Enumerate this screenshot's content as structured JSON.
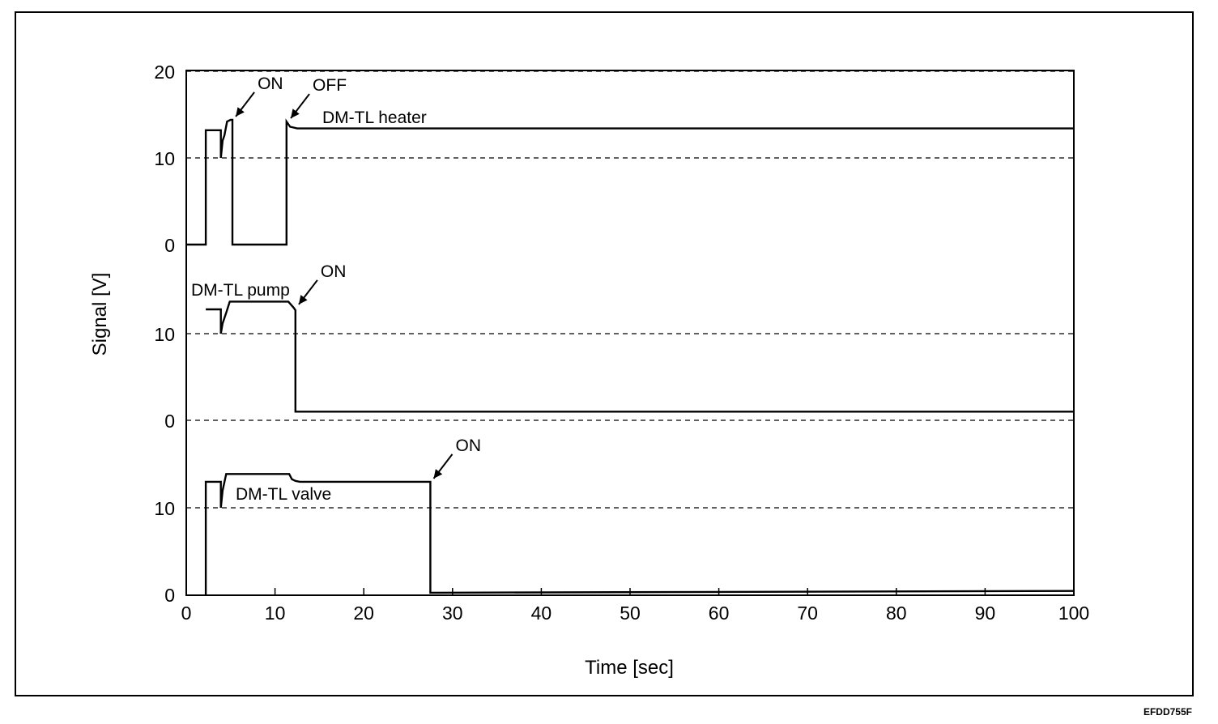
{
  "figure_code": "EFDD755F",
  "chart_data": {
    "type": "line",
    "xlabel": "Time [sec]",
    "ylabel": "Signal [V]",
    "xlim": [
      0,
      100
    ],
    "x_ticks": [
      "0",
      "10",
      "20",
      "30",
      "40",
      "50",
      "60",
      "70",
      "80",
      "90",
      "100"
    ],
    "panels": [
      {
        "name": "DM-TL heater",
        "ylim": [
          0,
          20
        ],
        "y_ticks": [
          "0",
          "10",
          "20"
        ],
        "grid_dashed": [
          10,
          20
        ],
        "series": [
          {
            "name": "DM-TL heater",
            "points": [
              [
                0,
                0
              ],
              [
                2.2,
                0
              ],
              [
                2.2,
                13.2
              ],
              [
                3.9,
                13.2
              ],
              [
                3.9,
                10
              ],
              [
                4.1,
                12
              ],
              [
                4.3,
                12.6
              ],
              [
                4.6,
                14.2
              ],
              [
                5.0,
                14.4
              ],
              [
                5.2,
                14.4
              ],
              [
                5.2,
                0
              ],
              [
                11.3,
                0
              ],
              [
                11.3,
                14.2
              ],
              [
                11.7,
                13.6
              ],
              [
                12.5,
                13.4
              ],
              [
                100,
                13.4
              ]
            ]
          }
        ],
        "annotations": [
          {
            "text": "ON",
            "x": 5.3,
            "y": 14.4
          },
          {
            "text": "OFF",
            "x": 11.5,
            "y": 14.2
          }
        ]
      },
      {
        "name": "DM-TL pump",
        "ylim": [
          0,
          20
        ],
        "y_ticks": [
          "0",
          "10"
        ],
        "grid_dashed": [
          0,
          10
        ],
        "series": [
          {
            "name": "DM-TL pump",
            "points": [
              [
                2.2,
                12.8
              ],
              [
                3.9,
                12.8
              ],
              [
                3.9,
                10
              ],
              [
                4.1,
                11.2
              ],
              [
                4.5,
                12.4
              ],
              [
                4.9,
                13.7
              ],
              [
                11.5,
                13.7
              ],
              [
                12.1,
                13.0
              ],
              [
                12.3,
                12.7
              ],
              [
                12.3,
                1
              ],
              [
                100,
                1
              ]
            ]
          }
        ],
        "annotations": [
          {
            "text": "ON",
            "x": 12.4,
            "y": 13.0
          }
        ]
      },
      {
        "name": "DM-TL valve",
        "ylim": [
          0,
          20
        ],
        "y_ticks": [
          "0",
          "10"
        ],
        "grid_dashed": [
          10
        ],
        "series": [
          {
            "name": "DM-TL valve",
            "points": [
              [
                2.2,
                0
              ],
              [
                2.2,
                13.0
              ],
              [
                3.9,
                13.0
              ],
              [
                3.9,
                10
              ],
              [
                4.1,
                12
              ],
              [
                4.5,
                13.9
              ],
              [
                11.6,
                13.9
              ],
              [
                11.9,
                13.3
              ],
              [
                12.3,
                13.1
              ],
              [
                12.8,
                13.0
              ],
              [
                27.5,
                13.0
              ],
              [
                27.5,
                0.2
              ],
              [
                100,
                0.4
              ]
            ]
          }
        ],
        "annotations": [
          {
            "text": "ON",
            "x": 27.6,
            "y": 13.0
          }
        ]
      }
    ]
  }
}
